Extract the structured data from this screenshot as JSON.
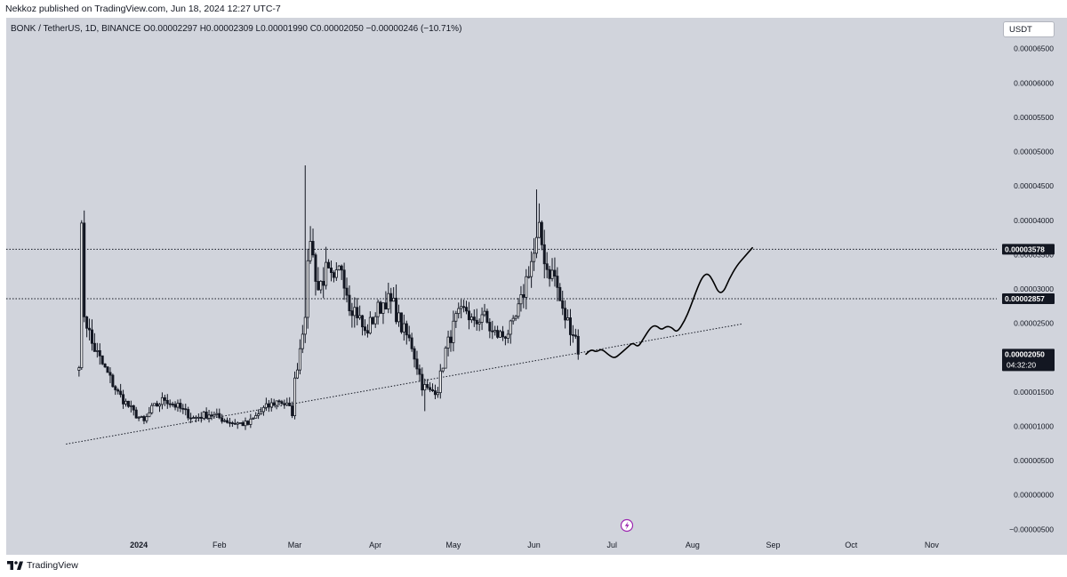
{
  "header": {
    "publisher_line": "Nekkoz published on TradingView.com, Jun 18, 2024 12:27 UTC-7"
  },
  "legend": {
    "text": "BONK / TetherUS, 1D, BINANCE  O0.00002297  H0.00002309  L0.00001990  C0.00002050  −0.00000246 (−10.71%)"
  },
  "currency_button": {
    "label": "USDT"
  },
  "price_tags": {
    "upper_level": "0.00003578",
    "lower_level": "0.00002857",
    "last_price": "0.00002050",
    "countdown": "04:32:20"
  },
  "footer": {
    "brand": "TradingView"
  },
  "colors": {
    "chart_bg": "#d1d4dc",
    "candles": "#131722",
    "tag_bg": "#131722",
    "alert_icon": "#9c27b0"
  },
  "chart_data": {
    "type": "candlestick",
    "symbol": "BONK / TetherUS",
    "interval": "1D",
    "exchange": "BINANCE",
    "y_ticks": [
      "0.00006500",
      "0.00006000",
      "0.00005500",
      "0.00005000",
      "0.00004500",
      "0.00004000",
      "0.00003500",
      "0.00003000",
      "0.00002500",
      "0.00002000",
      "0.00001500",
      "0.00001000",
      "0.00000500",
      "0.00000000",
      "−0.00000500"
    ],
    "x_ticks": [
      "2024",
      "Feb",
      "Mar",
      "Apr",
      "May",
      "Jun",
      "Jul",
      "Aug",
      "Sep",
      "Oct",
      "Nov"
    ],
    "ylim": [
      -6e-06,
      6.95e-05
    ],
    "xlim": [
      "2023-11-11",
      "2024-11-26"
    ],
    "grid": false,
    "horizontal_levels": [
      3.578e-05,
      2.857e-05
    ],
    "trendline": {
      "start": [
        "2023-12-04",
        7.4e-06
      ],
      "end": [
        "2024-08-20",
        2.49e-05
      ]
    },
    "projection": [
      [
        "2024-06-21",
        2.05e-05
      ],
      [
        "2024-06-23",
        2.12e-05
      ],
      [
        "2024-06-25",
        2.08e-05
      ],
      [
        "2024-06-27",
        2.13e-05
      ],
      [
        "2024-06-30",
        2.03e-05
      ],
      [
        "2024-07-02",
        1.99e-05
      ],
      [
        "2024-07-04",
        2.05e-05
      ],
      [
        "2024-07-07",
        2.15e-05
      ],
      [
        "2024-07-09",
        2.22e-05
      ],
      [
        "2024-07-11",
        2.15e-05
      ],
      [
        "2024-07-13",
        2.27e-05
      ],
      [
        "2024-07-16",
        2.45e-05
      ],
      [
        "2024-07-18",
        2.47e-05
      ],
      [
        "2024-07-20",
        2.4e-05
      ],
      [
        "2024-07-22",
        2.46e-05
      ],
      [
        "2024-07-24",
        2.44e-05
      ],
      [
        "2024-07-26",
        2.36e-05
      ],
      [
        "2024-07-29",
        2.54e-05
      ],
      [
        "2024-07-31",
        2.72e-05
      ],
      [
        "2024-08-03",
        3.03e-05
      ],
      [
        "2024-08-05",
        3.19e-05
      ],
      [
        "2024-08-07",
        3.23e-05
      ],
      [
        "2024-08-09",
        3.11e-05
      ],
      [
        "2024-08-11",
        2.94e-05
      ],
      [
        "2024-08-13",
        2.96e-05
      ],
      [
        "2024-08-15",
        3.14e-05
      ],
      [
        "2024-08-18",
        3.34e-05
      ],
      [
        "2024-08-21",
        3.47e-05
      ],
      [
        "2024-08-24",
        3.6e-05
      ]
    ],
    "price_anchors": [
      [
        "2023-12-09",
        1.95e-05
      ],
      [
        "2023-12-10",
        3.8e-05
      ],
      [
        "2023-12-11",
        2.65e-05
      ],
      [
        "2023-12-14",
        2.2e-05
      ],
      [
        "2023-12-18",
        1.9e-05
      ],
      [
        "2023-12-24",
        1.48e-05
      ],
      [
        "2023-12-30",
        1.2e-05
      ],
      [
        "2024-01-03",
        1.06e-05
      ],
      [
        "2024-01-06",
        1.25e-05
      ],
      [
        "2024-01-11",
        1.4e-05
      ],
      [
        "2024-01-16",
        1.28e-05
      ],
      [
        "2024-01-22",
        1.12e-05
      ],
      [
        "2024-01-28",
        1.18e-05
      ],
      [
        "2024-02-06",
        1.05e-05
      ],
      [
        "2024-02-12",
        1.03e-05
      ],
      [
        "2024-02-18",
        1.25e-05
      ],
      [
        "2024-02-24",
        1.38e-05
      ],
      [
        "2024-02-27",
        1.3e-05
      ],
      [
        "2024-02-29",
        1.2e-05
      ],
      [
        "2024-03-01",
        1.65e-05
      ],
      [
        "2024-03-03",
        2.15e-05
      ],
      [
        "2024-03-05",
        2.7e-05
      ],
      [
        "2024-03-07",
        3.8e-05
      ],
      [
        "2024-03-08",
        3.45e-05
      ],
      [
        "2024-03-10",
        3e-05
      ],
      [
        "2024-03-13",
        3.25e-05
      ],
      [
        "2024-03-16",
        3.05e-05
      ],
      [
        "2024-03-19",
        3.35e-05
      ],
      [
        "2024-03-22",
        2.8e-05
      ],
      [
        "2024-03-25",
        2.65e-05
      ],
      [
        "2024-03-28",
        2.35e-05
      ],
      [
        "2024-04-02",
        2.7e-05
      ],
      [
        "2024-04-05",
        2.85e-05
      ],
      [
        "2024-04-08",
        2.75e-05
      ],
      [
        "2024-04-11",
        2.45e-05
      ],
      [
        "2024-04-15",
        2.18e-05
      ],
      [
        "2024-04-19",
        1.6e-05
      ],
      [
        "2024-04-22",
        1.5e-05
      ],
      [
        "2024-04-25",
        1.55e-05
      ],
      [
        "2024-04-28",
        2.1e-05
      ],
      [
        "2024-05-02",
        2.55e-05
      ],
      [
        "2024-05-06",
        2.7e-05
      ],
      [
        "2024-05-09",
        2.45e-05
      ],
      [
        "2024-05-12",
        2.65e-05
      ],
      [
        "2024-05-16",
        2.35e-05
      ],
      [
        "2024-05-20",
        2.32e-05
      ],
      [
        "2024-05-24",
        2.45e-05
      ],
      [
        "2024-05-27",
        2.8e-05
      ],
      [
        "2024-05-30",
        3.3e-05
      ],
      [
        "2024-06-01",
        3.5e-05
      ],
      [
        "2024-06-03",
        3.8e-05
      ],
      [
        "2024-06-04",
        3.65e-05
      ],
      [
        "2024-06-06",
        3.3e-05
      ],
      [
        "2024-06-09",
        3.18e-05
      ],
      [
        "2024-06-12",
        2.65e-05
      ],
      [
        "2024-06-15",
        2.45e-05
      ],
      [
        "2024-06-17",
        2.3e-05
      ],
      [
        "2024-06-18",
        2.05e-05
      ]
    ]
  }
}
